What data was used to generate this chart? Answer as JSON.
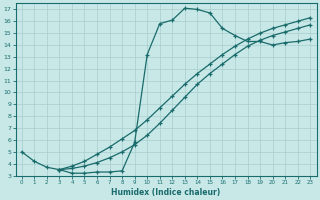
{
  "xlabel": "Humidex (Indice chaleur)",
  "bg_color": "#c8e8e8",
  "line_color": "#1a6b6b",
  "grid_color": "#a8cccc",
  "spine_color": "#1a6b6b",
  "xlim": [
    -0.5,
    23.5
  ],
  "ylim": [
    3,
    17.5
  ],
  "xticks": [
    0,
    1,
    2,
    3,
    4,
    5,
    6,
    7,
    8,
    9,
    10,
    11,
    12,
    13,
    14,
    15,
    16,
    17,
    18,
    19,
    20,
    21,
    22,
    23
  ],
  "yticks": [
    3,
    4,
    5,
    6,
    7,
    8,
    9,
    10,
    11,
    12,
    13,
    14,
    15,
    16,
    17
  ],
  "line1_x": [
    0,
    1,
    2,
    3,
    4,
    5,
    6,
    7,
    8,
    9,
    10,
    11,
    12,
    13,
    14,
    15,
    16,
    17,
    18,
    19,
    20,
    21,
    22,
    23
  ],
  "line1_y": [
    5.0,
    4.2,
    3.7,
    3.5,
    3.2,
    3.2,
    3.3,
    3.3,
    3.4,
    5.8,
    13.2,
    15.8,
    16.1,
    17.1,
    17.0,
    16.7,
    15.4,
    14.8,
    14.3,
    14.3,
    14.0,
    14.2,
    14.3,
    14.5
  ],
  "line2_x": [
    3,
    4,
    5,
    6,
    7,
    8,
    9,
    10,
    11,
    12,
    13,
    14,
    15,
    16,
    17,
    18,
    19,
    20,
    21,
    22,
    23
  ],
  "line2_y": [
    3.5,
    3.8,
    4.2,
    4.8,
    5.4,
    6.1,
    6.8,
    7.7,
    8.7,
    9.7,
    10.7,
    11.6,
    12.4,
    13.2,
    13.9,
    14.5,
    15.0,
    15.4,
    15.7,
    16.0,
    16.3
  ],
  "line3_x": [
    3,
    4,
    5,
    6,
    7,
    8,
    9,
    10,
    11,
    12,
    13,
    14,
    15,
    16,
    17,
    18,
    19,
    20,
    21,
    22,
    23
  ],
  "line3_y": [
    3.5,
    3.6,
    3.8,
    4.1,
    4.5,
    5.0,
    5.6,
    6.4,
    7.4,
    8.5,
    9.6,
    10.7,
    11.6,
    12.4,
    13.2,
    13.9,
    14.4,
    14.8,
    15.1,
    15.4,
    15.7
  ]
}
